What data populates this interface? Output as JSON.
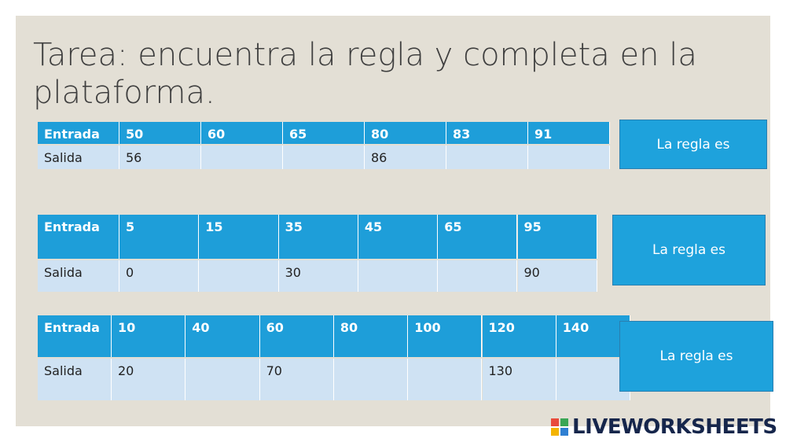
{
  "header": {
    "title": "Tarea: encuentra la regla y completa en la plataforma."
  },
  "tables": [
    {
      "row_headers": [
        "Entrada",
        "Salida"
      ],
      "inputs": [
        50,
        60,
        65,
        80,
        83,
        91
      ],
      "outputs": [
        56,
        null,
        null,
        86,
        null,
        null
      ],
      "rule_box": "La regla es"
    },
    {
      "row_headers": [
        "Entrada",
        "Salida"
      ],
      "inputs": [
        5,
        15,
        35,
        45,
        65,
        95
      ],
      "outputs": [
        0,
        null,
        30,
        null,
        null,
        90
      ],
      "rule_box": "La regla es"
    },
    {
      "row_headers": [
        "Entrada",
        "Salida"
      ],
      "inputs": [
        10,
        40,
        60,
        80,
        100,
        120,
        140
      ],
      "outputs": [
        20,
        null,
        70,
        null,
        null,
        130,
        null
      ],
      "rule_box": "La regla es"
    }
  ],
  "footer": {
    "brand": "LIVEWORKSHEETS"
  }
}
